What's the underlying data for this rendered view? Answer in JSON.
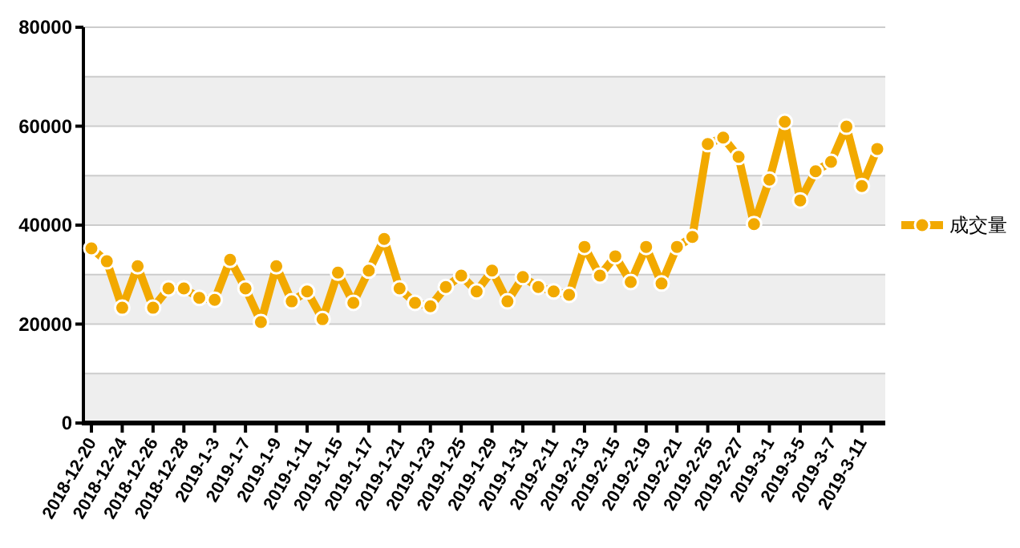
{
  "chart_data": {
    "type": "line",
    "categories": [
      "2018-12-20",
      null,
      "2018-12-24",
      null,
      "2018-12-26",
      null,
      "2018-12-28",
      null,
      "2019-1-3",
      null,
      "2019-1-7",
      null,
      "2019-1-9",
      null,
      "2019-1-11",
      null,
      "2019-1-15",
      null,
      "2019-1-17",
      null,
      "2019-1-21",
      null,
      "2019-1-23",
      null,
      "2019-1-25",
      null,
      "2019-1-29",
      null,
      "2019-1-31",
      null,
      "2019-2-11",
      null,
      "2019-2-13",
      null,
      "2019-2-15",
      null,
      "2019-2-19",
      null,
      "2019-2-21",
      null,
      "2019-2-25",
      null,
      "2019-2-27",
      null,
      "2019-3-1",
      null,
      "2019-3-5",
      null,
      "2019-3-7",
      null,
      "2019-3-11",
      null
    ],
    "series": [
      {
        "name": "成交量",
        "color": "#f2a900",
        "values": [
          35300,
          32700,
          23300,
          31700,
          23300,
          27200,
          27200,
          25300,
          24900,
          33000,
          27200,
          20400,
          31700,
          24600,
          26600,
          21000,
          30400,
          24300,
          30800,
          37200,
          27200,
          24300,
          23600,
          27500,
          29800,
          26600,
          30800,
          24600,
          29500,
          27500,
          26600,
          25900,
          35600,
          29800,
          33700,
          28500,
          35600,
          28200,
          35600,
          37600,
          56400,
          57700,
          53800,
          40200,
          49200,
          60900,
          45000,
          50900,
          52800,
          59900,
          47900,
          55400
        ]
      }
    ],
    "ylim": [
      0,
      80000
    ],
    "yticks": [
      0,
      {
        "value": 10000,
        "label": null
      },
      20000,
      {
        "value": 30000,
        "label": null
      },
      40000,
      {
        "value": 50000,
        "label": null
      },
      60000,
      {
        "value": 70000,
        "label": null
      },
      80000
    ],
    "bands": [
      {
        "axis": "y",
        "from": 0,
        "to": 10000,
        "color": "#eeeeee"
      },
      {
        "axis": "y",
        "from": 20000,
        "to": 30000,
        "color": "#eeeeee"
      },
      {
        "axis": "y",
        "from": 40000,
        "to": 50000,
        "color": "#eeeeee"
      },
      {
        "axis": "y",
        "from": 60000,
        "to": 70000,
        "color": "#eeeeee"
      }
    ],
    "grid": "y",
    "legend": "right",
    "marker": "circle",
    "line_style": "solid"
  }
}
